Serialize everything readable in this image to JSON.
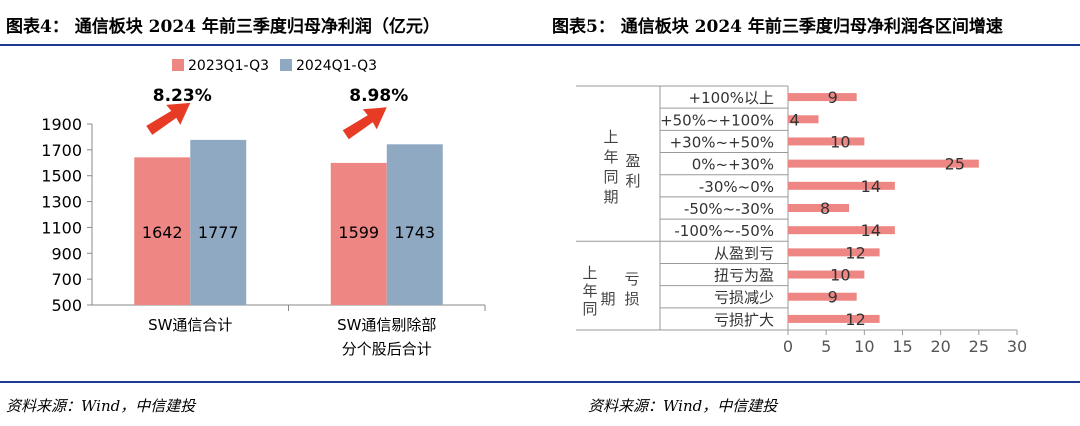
{
  "left_title": "图表4： 通信板块 2024 年前三季度归母净利润（亿元）",
  "right_title": "图表5： 通信板块 2024 年前三季度归母净利润各区间增速",
  "left_source": "资料来源：Wind，中信建投",
  "right_source": "资料来源：Wind，中信建投",
  "colors": {
    "series_2023": "#ee8683",
    "series_2024": "#8fa9c3",
    "bar_right": "#ee8683",
    "arrow": "#e83b25",
    "rule": "#1f3a93"
  },
  "icons": {
    "growth_arrow": "red-up-right-arrow"
  },
  "chart_data": [
    {
      "type": "bar",
      "title": "",
      "categories": [
        [
          "SW通信合计"
        ],
        [
          "SW通信剔除部",
          "分个股后合计"
        ]
      ],
      "series": [
        {
          "name": "2023Q1-Q3",
          "values": [
            1642,
            1599
          ]
        },
        {
          "name": "2024Q1-Q3",
          "values": [
            1777,
            1743
          ]
        }
      ],
      "growth_labels": [
        "8.23%",
        "8.98%"
      ],
      "ylim": [
        500,
        1900
      ],
      "yticks": [
        500,
        700,
        900,
        1100,
        1300,
        1500,
        1700,
        1900
      ],
      "legend": "top"
    },
    {
      "type": "bar",
      "orientation": "horizontal",
      "title": "",
      "categories": [
        "+100%以上",
        "+50%~+100%",
        "+30%~+50%",
        "0%~+30%",
        "-30%~0%",
        "-50%~-30%",
        "-100%~-50%",
        "从盈到亏",
        "扭亏为盈",
        "亏损减少",
        "亏损扩大"
      ],
      "values": [
        9,
        4,
        10,
        25,
        14,
        8,
        14,
        12,
        10,
        9,
        12
      ],
      "groups": [
        {
          "label": "上年同期盈利",
          "label_lines": [
            "上年同期",
            "盈利"
          ]
        },
        {
          "label": "上年同期亏损",
          "label_lines": [
            "上年同",
            "期",
            "亏损"
          ]
        }
      ],
      "xlim": [
        0,
        30
      ],
      "xticks": [
        0,
        5,
        10,
        15,
        20,
        25,
        30
      ]
    }
  ]
}
